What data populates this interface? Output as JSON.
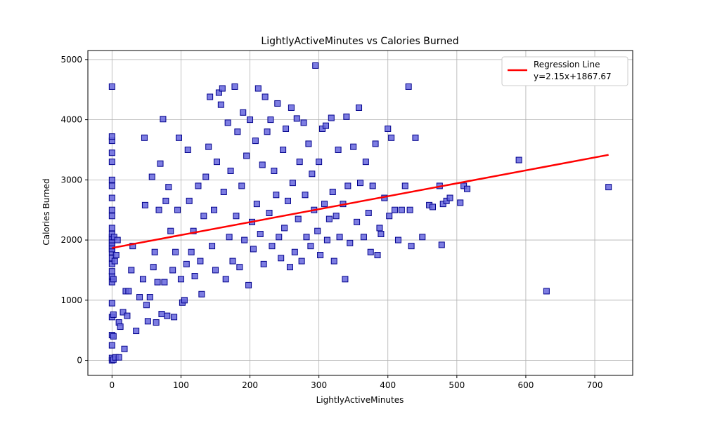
{
  "chart_data": {
    "type": "scatter",
    "title": "LightlyActiveMinutes vs Calories Burned",
    "xlabel": "LightlyActiveMinutes",
    "ylabel": "Calories Burned",
    "xlim": [
      -35,
      755
    ],
    "ylim": [
      -250,
      5150
    ],
    "xticks": [
      0,
      100,
      200,
      300,
      400,
      500,
      600,
      700
    ],
    "yticks": [
      0,
      1000,
      2000,
      3000,
      4000,
      5000
    ],
    "grid": true,
    "legend_placement": "top-right",
    "marker": "square",
    "point_color": "#6666dd",
    "point_edge_color": "#00008b",
    "series": [
      {
        "name": "",
        "points": [
          [
            0,
            0
          ],
          [
            0,
            40
          ],
          [
            2,
            10
          ],
          [
            5,
            50
          ],
          [
            10,
            50
          ],
          [
            0,
            250
          ],
          [
            0,
            420
          ],
          [
            2,
            400
          ],
          [
            0,
            720
          ],
          [
            2,
            760
          ],
          [
            0,
            950
          ],
          [
            0,
            1300
          ],
          [
            0,
            1400
          ],
          [
            0,
            1480
          ],
          [
            0,
            1600
          ],
          [
            0,
            1700
          ],
          [
            0,
            1800
          ],
          [
            0,
            1850
          ],
          [
            0,
            1900
          ],
          [
            0,
            1950
          ],
          [
            0,
            2000
          ],
          [
            0,
            2050
          ],
          [
            0,
            2100
          ],
          [
            0,
            2200
          ],
          [
            0,
            2400
          ],
          [
            0,
            2500
          ],
          [
            0,
            2700
          ],
          [
            0,
            2900
          ],
          [
            0,
            3000
          ],
          [
            0,
            3300
          ],
          [
            0,
            3450
          ],
          [
            0,
            3650
          ],
          [
            0,
            3720
          ],
          [
            0,
            4550
          ],
          [
            2,
            1350
          ],
          [
            3,
            2050
          ],
          [
            4,
            1650
          ],
          [
            6,
            1750
          ],
          [
            8,
            2000
          ],
          [
            10,
            630
          ],
          [
            12,
            560
          ],
          [
            16,
            800
          ],
          [
            18,
            190
          ],
          [
            20,
            1150
          ],
          [
            22,
            740
          ],
          [
            24,
            1150
          ],
          [
            28,
            1500
          ],
          [
            30,
            1900
          ],
          [
            35,
            490
          ],
          [
            40,
            1050
          ],
          [
            45,
            1350
          ],
          [
            47,
            3700
          ],
          [
            48,
            2580
          ],
          [
            50,
            920
          ],
          [
            52,
            650
          ],
          [
            55,
            1050
          ],
          [
            58,
            3050
          ],
          [
            60,
            1550
          ],
          [
            62,
            1800
          ],
          [
            64,
            630
          ],
          [
            66,
            1300
          ],
          [
            68,
            2500
          ],
          [
            70,
            3270
          ],
          [
            72,
            770
          ],
          [
            74,
            4010
          ],
          [
            76,
            1300
          ],
          [
            78,
            2650
          ],
          [
            80,
            740
          ],
          [
            82,
            2880
          ],
          [
            85,
            2150
          ],
          [
            88,
            1500
          ],
          [
            90,
            720
          ],
          [
            92,
            1800
          ],
          [
            95,
            2500
          ],
          [
            97,
            3700
          ],
          [
            100,
            1350
          ],
          [
            102,
            960
          ],
          [
            105,
            1000
          ],
          [
            108,
            1600
          ],
          [
            110,
            3500
          ],
          [
            112,
            2650
          ],
          [
            115,
            1800
          ],
          [
            118,
            2150
          ],
          [
            120,
            1400
          ],
          [
            125,
            2900
          ],
          [
            128,
            1650
          ],
          [
            130,
            1100
          ],
          [
            133,
            2400
          ],
          [
            136,
            3050
          ],
          [
            140,
            3550
          ],
          [
            142,
            4380
          ],
          [
            145,
            1900
          ],
          [
            148,
            2500
          ],
          [
            150,
            1500
          ],
          [
            152,
            3300
          ],
          [
            155,
            4450
          ],
          [
            158,
            4250
          ],
          [
            160,
            4520
          ],
          [
            162,
            2800
          ],
          [
            165,
            1350
          ],
          [
            168,
            3950
          ],
          [
            170,
            2050
          ],
          [
            172,
            3150
          ],
          [
            175,
            1650
          ],
          [
            178,
            4550
          ],
          [
            180,
            2400
          ],
          [
            182,
            3800
          ],
          [
            185,
            1550
          ],
          [
            188,
            2900
          ],
          [
            190,
            4120
          ],
          [
            192,
            2000
          ],
          [
            195,
            3400
          ],
          [
            198,
            1250
          ],
          [
            200,
            4000
          ],
          [
            203,
            2300
          ],
          [
            205,
            1850
          ],
          [
            208,
            3650
          ],
          [
            210,
            2600
          ],
          [
            212,
            4520
          ],
          [
            215,
            2100
          ],
          [
            218,
            3250
          ],
          [
            220,
            1600
          ],
          [
            222,
            4380
          ],
          [
            225,
            3800
          ],
          [
            228,
            2450
          ],
          [
            230,
            4000
          ],
          [
            232,
            1900
          ],
          [
            235,
            3150
          ],
          [
            238,
            2750
          ],
          [
            240,
            4270
          ],
          [
            242,
            2050
          ],
          [
            245,
            1700
          ],
          [
            248,
            3500
          ],
          [
            250,
            2200
          ],
          [
            252,
            3850
          ],
          [
            255,
            2650
          ],
          [
            258,
            1550
          ],
          [
            260,
            4200
          ],
          [
            262,
            2950
          ],
          [
            265,
            1800
          ],
          [
            268,
            4020
          ],
          [
            270,
            2350
          ],
          [
            272,
            3300
          ],
          [
            275,
            1650
          ],
          [
            278,
            3950
          ],
          [
            280,
            2750
          ],
          [
            282,
            2050
          ],
          [
            285,
            3600
          ],
          [
            288,
            1900
          ],
          [
            290,
            3100
          ],
          [
            293,
            2500
          ],
          [
            295,
            4900
          ],
          [
            298,
            2150
          ],
          [
            300,
            3300
          ],
          [
            302,
            1750
          ],
          [
            305,
            3850
          ],
          [
            308,
            2600
          ],
          [
            310,
            3900
          ],
          [
            312,
            2000
          ],
          [
            315,
            2350
          ],
          [
            318,
            4030
          ],
          [
            320,
            2800
          ],
          [
            322,
            1650
          ],
          [
            325,
            2400
          ],
          [
            328,
            3500
          ],
          [
            330,
            2050
          ],
          [
            335,
            2600
          ],
          [
            338,
            1350
          ],
          [
            340,
            4050
          ],
          [
            342,
            2900
          ],
          [
            345,
            1950
          ],
          [
            350,
            3550
          ],
          [
            355,
            2300
          ],
          [
            358,
            4200
          ],
          [
            360,
            2950
          ],
          [
            365,
            2050
          ],
          [
            368,
            3300
          ],
          [
            372,
            2450
          ],
          [
            375,
            1800
          ],
          [
            378,
            2900
          ],
          [
            382,
            3600
          ],
          [
            385,
            1750
          ],
          [
            388,
            2200
          ],
          [
            390,
            2100
          ],
          [
            395,
            2700
          ],
          [
            400,
            3850
          ],
          [
            402,
            2400
          ],
          [
            405,
            3700
          ],
          [
            410,
            2500
          ],
          [
            415,
            2000
          ],
          [
            420,
            2500
          ],
          [
            425,
            2900
          ],
          [
            430,
            4550
          ],
          [
            432,
            2500
          ],
          [
            434,
            1900
          ],
          [
            440,
            3700
          ],
          [
            450,
            2050
          ],
          [
            460,
            2580
          ],
          [
            465,
            2550
          ],
          [
            475,
            2900
          ],
          [
            478,
            1920
          ],
          [
            480,
            2600
          ],
          [
            485,
            2650
          ],
          [
            490,
            2700
          ],
          [
            505,
            2620
          ],
          [
            510,
            2900
          ],
          [
            515,
            2850
          ],
          [
            590,
            3330
          ],
          [
            630,
            1150
          ],
          [
            720,
            2880
          ]
        ]
      }
    ],
    "regression": {
      "name": "Regression Line",
      "equation": "y=2.15x+1867.67",
      "color": "#ff0000",
      "slope": 2.15,
      "intercept": 1867.67,
      "x_range": [
        0,
        720
      ]
    }
  }
}
